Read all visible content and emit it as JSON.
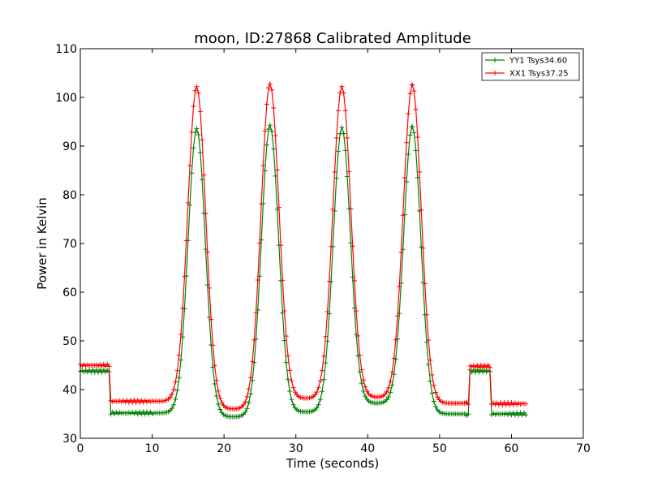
{
  "chart_data": {
    "type": "line",
    "title": "moon, ID:27868 Calibrated Amplitude",
    "xlabel": "Time (seconds)",
    "ylabel": "Power in Kelvin",
    "xlim": [
      0,
      70
    ],
    "ylim": [
      30,
      110
    ],
    "xticks": [
      0,
      10,
      20,
      30,
      40,
      50,
      60,
      70
    ],
    "yticks": [
      30,
      40,
      50,
      60,
      70,
      80,
      90,
      100,
      110
    ],
    "grid": false,
    "legend_position": "top-right",
    "marker": "+",
    "sample_interval": 0.25,
    "series": [
      {
        "name": "YY1 Tsys34.60",
        "color": "#008000",
        "segments": [
          {
            "type": "flat",
            "start": 0,
            "end": 4,
            "value": 43.8
          },
          {
            "type": "flat",
            "start": 4.25,
            "end": 10,
            "value": 35.2
          },
          {
            "type": "flat",
            "start": 53.75,
            "end": 54,
            "value": 34.8
          },
          {
            "type": "flat",
            "start": 54.25,
            "end": 57,
            "value": 43.8
          },
          {
            "type": "flat",
            "start": 57.25,
            "end": 62,
            "value": 35.0
          }
        ],
        "peaks": [
          {
            "center": 16.2,
            "height": 93.6,
            "width": 1.2
          },
          {
            "center": 26.4,
            "height": 94.3,
            "width": 1.2
          },
          {
            "center": 36.4,
            "height": 93.8,
            "width": 1.2
          },
          {
            "center": 46.2,
            "height": 94.0,
            "width": 1.2
          }
        ],
        "valleys": [
          {
            "start": 10,
            "end": 16.2,
            "base": 35.2
          },
          {
            "start": 16.2,
            "end": 26.4,
            "base": 34.4
          },
          {
            "start": 26.4,
            "end": 36.4,
            "base": 35.4
          },
          {
            "start": 36.4,
            "end": 46.2,
            "base": 37.2
          },
          {
            "start": 46.2,
            "end": 53.75,
            "base": 35.0
          }
        ]
      },
      {
        "name": "XX1 Tsys37.25",
        "color": "#ff0000",
        "segments": [
          {
            "type": "flat",
            "start": 0,
            "end": 4,
            "value": 45.0
          },
          {
            "type": "flat",
            "start": 4.25,
            "end": 10,
            "value": 37.6
          },
          {
            "type": "flat",
            "start": 53.75,
            "end": 54,
            "value": 37.2
          },
          {
            "type": "flat",
            "start": 54.25,
            "end": 57,
            "value": 44.8
          },
          {
            "type": "flat",
            "start": 57.25,
            "end": 62,
            "value": 37.1
          }
        ],
        "peaks": [
          {
            "center": 16.2,
            "height": 102.2,
            "width": 1.25
          },
          {
            "center": 26.4,
            "height": 102.8,
            "width": 1.25
          },
          {
            "center": 36.4,
            "height": 102.2,
            "width": 1.25
          },
          {
            "center": 46.2,
            "height": 102.6,
            "width": 1.25
          }
        ],
        "valleys": [
          {
            "start": 10,
            "end": 16.2,
            "base": 37.6
          },
          {
            "start": 16.2,
            "end": 26.4,
            "base": 36.0
          },
          {
            "start": 26.4,
            "end": 36.4,
            "base": 38.2
          },
          {
            "start": 36.4,
            "end": 46.2,
            "base": 38.4
          },
          {
            "start": 46.2,
            "end": 53.75,
            "base": 37.2
          }
        ]
      }
    ]
  }
}
